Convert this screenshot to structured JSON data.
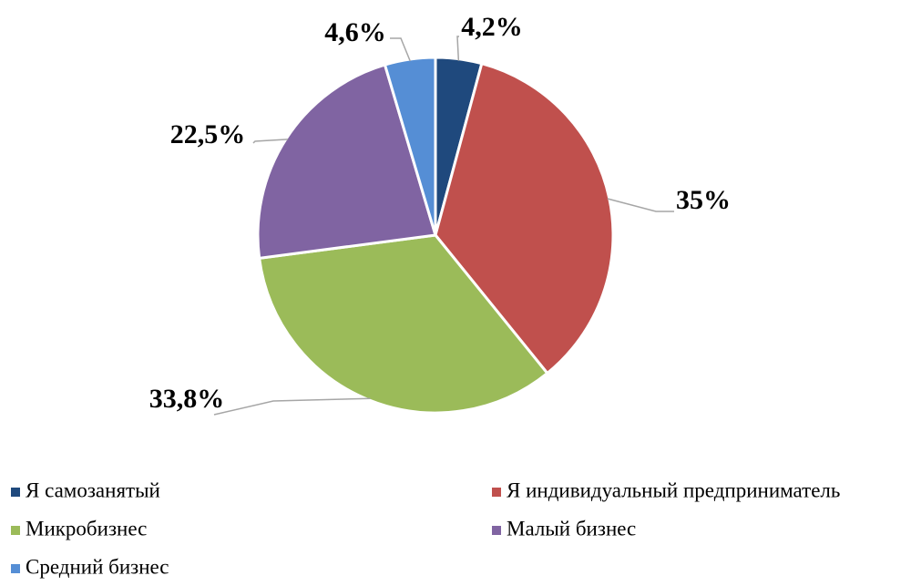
{
  "chart_data": {
    "type": "pie",
    "categories": [
      "Я самозанятый",
      "Я индивидуальный предприниматель",
      "Микробизнес",
      "Малый бизнес",
      "Средний бизнес"
    ],
    "values": [
      4.2,
      35,
      33.8,
      22.5,
      4.6
    ],
    "value_labels": [
      "4,2%",
      "35%",
      "33,8%",
      "22,5%",
      "4,6%"
    ],
    "colors": [
      "#1f497d",
      "#c0504d",
      "#9bbb59",
      "#8064a2",
      "#558ed5"
    ],
    "legend": "bottom"
  }
}
